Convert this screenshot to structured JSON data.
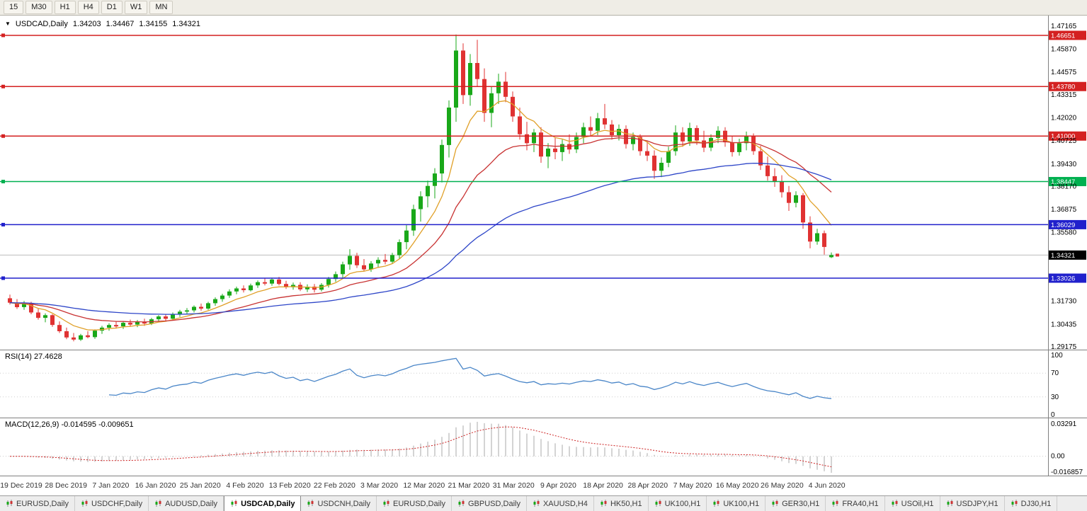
{
  "toolbar": {
    "timeframes": [
      "15",
      "M30",
      "H1",
      "H4",
      "D1",
      "W1",
      "MN"
    ]
  },
  "chart": {
    "symbol_line": {
      "icon": "▼",
      "title": "USDCAD,Daily",
      "open": "1.34203",
      "high": "1.34467",
      "low": "1.34155",
      "close": "1.34321"
    },
    "price_axis_ticks": [
      "1.47165",
      "1.45870",
      "1.44575",
      "1.43315",
      "1.42020",
      "1.40725",
      "1.39430",
      "1.38170",
      "1.36875",
      "1.35580",
      "1.31730",
      "1.30435",
      "1.29175"
    ],
    "hlines": [
      {
        "value": 1.46651,
        "label": "1.46651",
        "color": "#D42121"
      },
      {
        "value": 1.4378,
        "label": "1.43780",
        "color": "#D42121"
      },
      {
        "value": 1.41,
        "label": "1.41000",
        "color": "#D42121"
      },
      {
        "value": 1.38447,
        "label": "1.38447",
        "color": "#00B050"
      },
      {
        "value": 1.36029,
        "label": "1.36029",
        "color": "#2020CC"
      },
      {
        "value": 1.33026,
        "label": "1.33026",
        "color": "#2020CC"
      }
    ],
    "bid": {
      "value": 1.34321,
      "label": "1.34321",
      "badge_color": "#000000",
      "line_color": "#BDBDBD"
    },
    "ma": [
      {
        "period": 8,
        "color": "#E0A028"
      },
      {
        "period": 21,
        "color": "#C83232"
      },
      {
        "period": 55,
        "color": "#2E46C8"
      }
    ],
    "candles": [
      [
        1.319,
        1.321,
        1.3155,
        1.3165
      ],
      [
        1.3165,
        1.3185,
        1.313,
        1.314
      ],
      [
        1.314,
        1.3175,
        1.3125,
        1.316
      ],
      [
        1.316,
        1.317,
        1.31,
        1.311
      ],
      [
        1.311,
        1.313,
        1.307,
        1.308
      ],
      [
        1.308,
        1.3105,
        1.3055,
        1.3095
      ],
      [
        1.3095,
        1.31,
        1.303,
        1.304
      ],
      [
        1.304,
        1.306,
        1.2995,
        1.3005
      ],
      [
        1.3005,
        1.3025,
        1.296,
        1.297
      ],
      [
        1.297,
        1.2995,
        1.2948,
        1.2958
      ],
      [
        1.2958,
        1.299,
        1.295,
        1.2982
      ],
      [
        1.2982,
        1.3005,
        1.2965,
        1.2972
      ],
      [
        1.2972,
        1.3015,
        1.2962,
        1.3008
      ],
      [
        1.3008,
        1.3035,
        1.299,
        1.3025
      ],
      [
        1.3025,
        1.305,
        1.3008,
        1.304
      ],
      [
        1.304,
        1.3062,
        1.302,
        1.3032
      ],
      [
        1.3032,
        1.306,
        1.3018,
        1.3052
      ],
      [
        1.3052,
        1.307,
        1.303,
        1.3042
      ],
      [
        1.3042,
        1.3068,
        1.3028,
        1.3058
      ],
      [
        1.3058,
        1.3075,
        1.3035,
        1.3048
      ],
      [
        1.3048,
        1.308,
        1.304,
        1.3072
      ],
      [
        1.3072,
        1.3095,
        1.3055,
        1.3088
      ],
      [
        1.3088,
        1.31,
        1.3062,
        1.3075
      ],
      [
        1.3075,
        1.311,
        1.3068,
        1.3102
      ],
      [
        1.3102,
        1.3125,
        1.3085,
        1.3115
      ],
      [
        1.3115,
        1.3135,
        1.3098,
        1.3122
      ],
      [
        1.3122,
        1.315,
        1.311,
        1.3142
      ],
      [
        1.3142,
        1.316,
        1.312,
        1.3132
      ],
      [
        1.3132,
        1.317,
        1.3125,
        1.3162
      ],
      [
        1.3162,
        1.3195,
        1.3148,
        1.3185
      ],
      [
        1.3185,
        1.3215,
        1.317,
        1.3205
      ],
      [
        1.3205,
        1.324,
        1.3192,
        1.3228
      ],
      [
        1.3228,
        1.3255,
        1.3212,
        1.3245
      ],
      [
        1.3245,
        1.3262,
        1.3222,
        1.3235
      ],
      [
        1.3235,
        1.3272,
        1.3228,
        1.3262
      ],
      [
        1.3262,
        1.329,
        1.3248,
        1.328
      ],
      [
        1.328,
        1.3302,
        1.3262,
        1.3272
      ],
      [
        1.3272,
        1.3305,
        1.326,
        1.3295
      ],
      [
        1.3295,
        1.331,
        1.3262,
        1.327
      ],
      [
        1.327,
        1.3288,
        1.3242,
        1.3252
      ],
      [
        1.3252,
        1.3278,
        1.3238,
        1.3265
      ],
      [
        1.3265,
        1.328,
        1.323,
        1.324
      ],
      [
        1.324,
        1.3268,
        1.3225,
        1.3255
      ],
      [
        1.3255,
        1.327,
        1.3222,
        1.3238
      ],
      [
        1.3238,
        1.3275,
        1.3228,
        1.3265
      ],
      [
        1.3265,
        1.331,
        1.325,
        1.3298
      ],
      [
        1.3298,
        1.334,
        1.3282,
        1.3325
      ],
      [
        1.3325,
        1.3395,
        1.3305,
        1.338
      ],
      [
        1.338,
        1.3465,
        1.335,
        1.3428
      ],
      [
        1.3428,
        1.3445,
        1.336,
        1.3375
      ],
      [
        1.3375,
        1.341,
        1.334,
        1.3352
      ],
      [
        1.3352,
        1.3398,
        1.3338,
        1.3385
      ],
      [
        1.3385,
        1.342,
        1.3362,
        1.3405
      ],
      [
        1.3405,
        1.3438,
        1.338,
        1.3395
      ],
      [
        1.3395,
        1.3445,
        1.3382,
        1.3432
      ],
      [
        1.3432,
        1.352,
        1.341,
        1.3505
      ],
      [
        1.3505,
        1.36,
        1.3465,
        1.357
      ],
      [
        1.357,
        1.3715,
        1.354,
        1.369
      ],
      [
        1.369,
        1.379,
        1.362,
        1.3762
      ],
      [
        1.3762,
        1.385,
        1.37,
        1.382
      ],
      [
        1.382,
        1.392,
        1.375,
        1.389
      ],
      [
        1.389,
        1.408,
        1.384,
        1.405
      ],
      [
        1.405,
        1.43,
        1.398,
        1.426
      ],
      [
        1.426,
        1.467,
        1.418,
        1.458
      ],
      [
        1.458,
        1.462,
        1.428,
        1.433
      ],
      [
        1.433,
        1.456,
        1.427,
        1.451
      ],
      [
        1.451,
        1.464,
        1.438,
        1.442
      ],
      [
        1.442,
        1.448,
        1.418,
        1.423
      ],
      [
        1.423,
        1.438,
        1.415,
        1.434
      ],
      [
        1.434,
        1.445,
        1.428,
        1.4405
      ],
      [
        1.4405,
        1.446,
        1.429,
        1.432
      ],
      [
        1.432,
        1.435,
        1.418,
        1.421
      ],
      [
        1.421,
        1.426,
        1.408,
        1.411
      ],
      [
        1.411,
        1.418,
        1.402,
        1.406
      ],
      [
        1.406,
        1.414,
        1.401,
        1.412
      ],
      [
        1.412,
        1.415,
        1.395,
        1.3985
      ],
      [
        1.3985,
        1.406,
        1.392,
        1.403
      ],
      [
        1.403,
        1.409,
        1.397,
        1.401
      ],
      [
        1.401,
        1.408,
        1.396,
        1.4055
      ],
      [
        1.4055,
        1.411,
        1.4,
        1.4025
      ],
      [
        1.4025,
        1.412,
        1.4005,
        1.4095
      ],
      [
        1.4095,
        1.4175,
        1.406,
        1.415
      ],
      [
        1.415,
        1.421,
        1.41,
        1.413
      ],
      [
        1.413,
        1.423,
        1.4105,
        1.42
      ],
      [
        1.42,
        1.428,
        1.414,
        1.4165
      ],
      [
        1.4165,
        1.419,
        1.408,
        1.4105
      ],
      [
        1.4105,
        1.4165,
        1.4075,
        1.414
      ],
      [
        1.414,
        1.416,
        1.403,
        1.4055
      ],
      [
        1.4055,
        1.412,
        1.402,
        1.4095
      ],
      [
        1.4095,
        1.411,
        1.399,
        1.4015
      ],
      [
        1.4015,
        1.407,
        1.396,
        1.399
      ],
      [
        1.399,
        1.402,
        1.386,
        1.3905
      ],
      [
        1.3905,
        1.398,
        1.387,
        1.395
      ],
      [
        1.395,
        1.404,
        1.3925,
        1.4015
      ],
      [
        1.4015,
        1.416,
        1.399,
        1.412
      ],
      [
        1.412,
        1.415,
        1.404,
        1.407
      ],
      [
        1.407,
        1.4175,
        1.4045,
        1.4145
      ],
      [
        1.4145,
        1.416,
        1.405,
        1.4075
      ],
      [
        1.4075,
        1.413,
        1.401,
        1.4035
      ],
      [
        1.4035,
        1.411,
        1.4015,
        1.409
      ],
      [
        1.409,
        1.4155,
        1.406,
        1.413
      ],
      [
        1.413,
        1.415,
        1.404,
        1.4065
      ],
      [
        1.4065,
        1.41,
        1.3985,
        1.401
      ],
      [
        1.401,
        1.4085,
        1.399,
        1.406
      ],
      [
        1.406,
        1.4125,
        1.402,
        1.41
      ],
      [
        1.41,
        1.4115,
        1.3995,
        1.4015
      ],
      [
        1.4015,
        1.4045,
        1.391,
        1.3935
      ],
      [
        1.3935,
        1.3985,
        1.385,
        1.3875
      ],
      [
        1.3875,
        1.392,
        1.3815,
        1.3845
      ],
      [
        1.3845,
        1.388,
        1.3755,
        1.3785
      ],
      [
        1.3785,
        1.382,
        1.368,
        1.3725
      ],
      [
        1.3725,
        1.379,
        1.37,
        1.3768
      ],
      [
        1.3768,
        1.378,
        1.358,
        1.3615
      ],
      [
        1.3615,
        1.365,
        1.347,
        1.3508
      ],
      [
        1.3508,
        1.358,
        1.349,
        1.3555
      ],
      [
        1.3555,
        1.357,
        1.3435,
        1.3478
      ],
      [
        1.34203,
        1.34467,
        1.34155,
        1.34321
      ]
    ]
  },
  "rsi": {
    "label": "RSI(14) 27.4628",
    "period": 14,
    "color": "#4A86C8",
    "axis": [
      100,
      70,
      30,
      0
    ],
    "level_lines": [
      70,
      30
    ]
  },
  "macd": {
    "label": "MACD(12,26,9) -0.014595 -0.009651",
    "fast": 12,
    "slow": 26,
    "signal": 9,
    "hist_color": "#A8A8A8",
    "signal_color": "#CC2020",
    "axis_top": "0.03291",
    "axis_zero": "0.00",
    "axis_bottom": "-0.016857"
  },
  "date_axis": [
    "19 Dec 2019",
    "28 Dec 2019",
    "7 Jan 2020",
    "16 Jan 2020",
    "25 Jan 2020",
    "4 Feb 2020",
    "13 Feb 2020",
    "22 Feb 2020",
    "3 Mar 2020",
    "12 Mar 2020",
    "21 Mar 2020",
    "31 Mar 2020",
    "9 Apr 2020",
    "18 Apr 2020",
    "28 Apr 2020",
    "7 May 2020",
    "16 May 2020",
    "26 May 2020",
    "4 Jun 2020"
  ],
  "tabs": [
    {
      "label": "EURUSD,Daily",
      "active": false
    },
    {
      "label": "USDCHF,Daily",
      "active": false
    },
    {
      "label": "AUDUSD,Daily",
      "active": false
    },
    {
      "label": "USDCAD,Daily",
      "active": true
    },
    {
      "label": "USDCNH,Daily",
      "active": false
    },
    {
      "label": "EURUSD,Daily",
      "active": false
    },
    {
      "label": "GBPUSD,Daily",
      "active": false
    },
    {
      "label": "XAUUSD,H4",
      "active": false
    },
    {
      "label": "HK50,H1",
      "active": false
    },
    {
      "label": "UK100,H1",
      "active": false
    },
    {
      "label": "UK100,H1",
      "active": false
    },
    {
      "label": "GER30,H1",
      "active": false
    },
    {
      "label": "FRA40,H1",
      "active": false
    },
    {
      "label": "USOil,H1",
      "active": false
    },
    {
      "label": "USDJPY,H1",
      "active": false
    },
    {
      "label": "DJ30,H1",
      "active": false
    }
  ],
  "colors": {
    "candle_up": "#19A819",
    "candle_down": "#E03232",
    "panel_border": "#808080",
    "price_pointer": "#E03232",
    "tick_text": "#000000",
    "date_text": "#333333"
  }
}
